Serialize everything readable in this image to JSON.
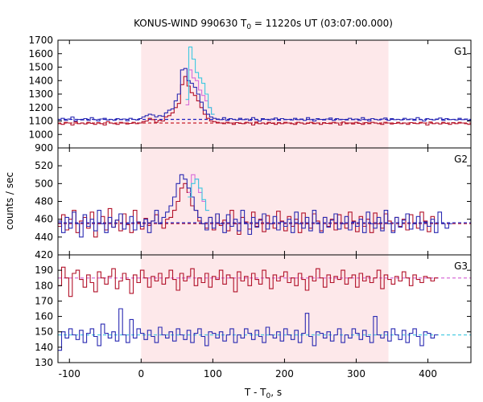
{
  "chart_data": {
    "type": "line",
    "title": "KONUS-WIND 990630 T",
    "title_sub": "0",
    "title_rest": " = 11220s UT (03:07:00.000)",
    "xlabel": "T - T",
    "xlabel_sub": "0",
    "xlabel_rest": ", s",
    "ylabel": "counts / sec",
    "xlim": [
      -116,
      460
    ],
    "x_ticks": [
      -100,
      0,
      100,
      200,
      300,
      400
    ],
    "x_tick_labels": [
      "-100",
      "0",
      "100",
      "200",
      "300",
      "400"
    ],
    "shaded_interval": [
      0,
      345
    ],
    "colors": {
      "red": "#b2122a",
      "blue": "#2a2ab2",
      "magenta": "#d86cd8",
      "cyan": "#3cc8e0",
      "shade": "#fde8ea",
      "red_bg": "#c8202c",
      "blue_bg": "#2020c0"
    },
    "panels": [
      {
        "label": "G1",
        "ylim": [
          900,
          1700
        ],
        "y_ticks": [
          900,
          1000,
          1100,
          1200,
          1300,
          1400,
          1500,
          1600,
          1700
        ],
        "y_tick_labels": [
          "900",
          "1000",
          "1100",
          "1200",
          "1300",
          "1400",
          "1500",
          "1600",
          "1700"
        ],
        "background_lines": [
          {
            "color": "red_bg",
            "value": 1085
          },
          {
            "color": "blue_bg",
            "value": 1112
          }
        ],
        "series": [
          {
            "color": "red",
            "x_start": -116,
            "bin": 4.5,
            "values": [
              1080,
              1075,
              1090,
              1085,
              1070,
              1095,
              1080,
              1085,
              1078,
              1090,
              1082,
              1075,
              1088,
              1080,
              1070,
              1095,
              1085,
              1080,
              1075,
              1090,
              1085,
              1078,
              1082,
              1090,
              1080,
              1085,
              1095,
              1100,
              1120,
              1110,
              1090,
              1105,
              1100,
              1130,
              1140,
              1160,
              1200,
              1230,
              1370,
              1430,
              1360,
              1310,
              1290,
              1250,
              1200,
              1150,
              1120,
              1100,
              1095,
              1090,
              1085,
              1080,
              1090,
              1085,
              1075,
              1088,
              1082,
              1080,
              1090,
              1085,
              1070,
              1092,
              1080,
              1085,
              1078,
              1090,
              1082,
              1075,
              1088,
              1080,
              1090,
              1085,
              1080,
              1075,
              1090,
              1085,
              1078,
              1082,
              1090,
              1080,
              1085,
              1075,
              1088,
              1082,
              1080,
              1090,
              1085,
              1070,
              1092,
              1080,
              1085,
              1078,
              1090,
              1082,
              1075,
              1088,
              1080,
              1090,
              1085,
              1080,
              1075,
              1090,
              1085,
              1078,
              1082,
              1090,
              1080,
              1085,
              1075,
              1088,
              1082,
              1080,
              1090,
              1085,
              1070,
              1092,
              1080,
              1085,
              1078,
              1090,
              1082,
              1075,
              1088,
              1080,
              1090,
              1085,
              1080,
              1075,
              1085
            ]
          },
          {
            "color": "blue",
            "x_start": -116,
            "bin": 4.5,
            "values": [
              1110,
              1120,
              1105,
              1115,
              1130,
              1100,
              1112,
              1108,
              1118,
              1105,
              1125,
              1110,
              1100,
              1115,
              1120,
              1108,
              1112,
              1105,
              1118,
              1110,
              1115,
              1102,
              1120,
              1112,
              1108,
              1118,
              1130,
              1140,
              1150,
              1145,
              1130,
              1140,
              1135,
              1160,
              1180,
              1190,
              1250,
              1300,
              1480,
              1490,
              1400,
              1380,
              1350,
              1300,
              1240,
              1180,
              1150,
              1130,
              1120,
              1115,
              1110,
              1125,
              1105,
              1118,
              1112,
              1108,
              1120,
              1110,
              1115,
              1105,
              1125,
              1110,
              1100,
              1118,
              1112,
              1108,
              1115,
              1122,
              1105,
              1118,
              1110,
              1112,
              1108,
              1120,
              1110,
              1115,
              1105,
              1125,
              1110,
              1100,
              1118,
              1112,
              1108,
              1115,
              1122,
              1105,
              1118,
              1110,
              1112,
              1108,
              1120,
              1110,
              1115,
              1105,
              1125,
              1110,
              1100,
              1118,
              1112,
              1108,
              1115,
              1122,
              1105,
              1118,
              1110,
              1112,
              1108,
              1120,
              1110,
              1115,
              1105,
              1125,
              1110,
              1100,
              1118,
              1112,
              1108,
              1115,
              1122,
              1105,
              1118,
              1110,
              1112,
              1108,
              1120,
              1110,
              1115,
              1105,
              1110
            ]
          },
          {
            "color": "magenta",
            "x_start": 62,
            "bin": 4.5,
            "values": [
              1220,
              1480,
              1420,
              1400,
              1330,
              1290,
              1250,
              1200,
              1150
            ]
          },
          {
            "color": "cyan",
            "x_start": 62,
            "bin": 4.5,
            "values": [
              1260,
              1650,
              1560,
              1460,
              1420,
              1380,
              1300,
              1200,
              1150
            ]
          }
        ]
      },
      {
        "label": "G2",
        "ylim": [
          420,
          540
        ],
        "y_ticks": [
          420,
          440,
          460,
          480,
          500,
          520
        ],
        "y_tick_labels": [
          "420",
          "440",
          "460",
          "480",
          "500",
          "520"
        ],
        "background_lines": [
          {
            "color": "red_bg",
            "value": 455
          },
          {
            "color": "blue_bg",
            "value": 456
          }
        ],
        "series": [
          {
            "color": "red",
            "x_start": -116,
            "bin": 5,
            "values": [
              452,
              465,
              448,
              460,
              470,
              445,
              458,
              462,
              450,
              468,
              440,
              455,
              463,
              448,
              472,
              451,
              459,
              447,
              466,
              454,
              445,
              470,
              456,
              449,
              461,
              453,
              458,
              465,
              455,
              450,
              460,
              462,
              470,
              480,
              495,
              500,
              490,
              475,
              470,
              458,
              455,
              450,
              462,
              448,
              466,
              453,
              459,
              447,
              470,
              455,
              443,
              462,
              457,
              449,
              468,
              452,
              460,
              446,
              464,
              455,
              450,
              469,
              458,
              447,
              463,
              452,
              460,
              445,
              467,
              455,
              450,
              466,
              458,
              447,
              462,
              452,
              460,
              448,
              465,
              455,
              450,
              468,
              458,
              446,
              463,
              452,
              460,
              445,
              467,
              455,
              450,
              466,
              458,
              447,
              462,
              452,
              460,
              448,
              465,
              455,
              450,
              468,
              458,
              446,
              463,
              455
            ]
          },
          {
            "color": "blue",
            "x_start": -116,
            "bin": 5,
            "values": [
              458,
              445,
              462,
              450,
              468,
              455,
              440,
              465,
              452,
              460,
              447,
              470,
              455,
              445,
              462,
              451,
              459,
              466,
              449,
              455,
              463,
              448,
              457,
              452,
              460,
              445,
              458,
              470,
              455,
              462,
              468,
              475,
              485,
              500,
              510,
              505,
              495,
              485,
              470,
              462,
              455,
              448,
              462,
              450,
              466,
              455,
              445,
              465,
              452,
              460,
              447,
              470,
              455,
              443,
              462,
              451,
              459,
              466,
              449,
              455,
              463,
              448,
              457,
              452,
              460,
              445,
              468,
              455,
              450,
              462,
              447,
              470,
              455,
              445,
              462,
              451,
              459,
              466,
              449,
              455,
              463,
              448,
              457,
              452,
              460,
              445,
              468,
              455,
              450,
              462,
              447,
              470,
              455,
              445,
              462,
              451,
              459,
              466,
              449,
              455,
              463,
              448,
              457,
              452,
              460,
              445,
              468,
              455,
              450,
              455
            ]
          },
          {
            "color": "magenta",
            "x_start": 65,
            "bin": 5,
            "values": [
              490,
              510,
              505,
              490,
              480,
              470
            ]
          },
          {
            "color": "cyan",
            "x_start": 65,
            "bin": 5,
            "values": [
              485,
              500,
              505,
              495,
              482,
              470
            ]
          }
        ]
      },
      {
        "label": "G3",
        "ylim": [
          130,
          200
        ],
        "y_ticks": [
          130,
          140,
          150,
          160,
          170,
          180,
          190
        ],
        "y_tick_labels": [
          "130",
          "140",
          "150",
          "160",
          "170",
          "180",
          "190"
        ],
        "background_lines": [
          {
            "color": "magenta",
            "value": 185
          },
          {
            "color": "cyan",
            "value": 148
          }
        ],
        "series": [
          {
            "color": "red",
            "x_start": -116,
            "bin": 5,
            "values": [
              180,
              192,
              185,
              173,
              188,
              190,
              184,
              179,
              187,
              182,
              176,
              189,
              185,
              181,
              186,
              191,
              178,
              183,
              188,
              184,
              175,
              187,
              182,
              190,
              185,
              179,
              186,
              183,
              188,
              181,
              185,
              190,
              184,
              177,
              188,
              183,
              186,
              191,
              180,
              185,
              182,
              188,
              179,
              186,
              184,
              190,
              181,
              187,
              185,
              176,
              189,
              183,
              186,
              180,
              188,
              184,
              181,
              190,
              185,
              178,
              187,
              183,
              186,
              189,
              182,
              185,
              180,
              188,
              184,
              177,
              186,
              183,
              191,
              185,
              179,
              187,
              182,
              186,
              184,
              190,
              181,
              185,
              187,
              179,
              188,
              183,
              186,
              182,
              185,
              190,
              178,
              187,
              184,
              181,
              186,
              183,
              189,
              185,
              180,
              187,
              184,
              182,
              186,
              185,
              183,
              185
            ]
          },
          {
            "color": "blue",
            "x_start": -116,
            "bin": 5,
            "values": [
              138,
              150,
              146,
              152,
              148,
              145,
              151,
              143,
              149,
              152,
              147,
              141,
              155,
              149,
              146,
              150,
              144,
              165,
              148,
              143,
              158,
              146,
              152,
              149,
              145,
              151,
              147,
              143,
              153,
              148,
              146,
              150,
              144,
              152,
              148,
              145,
              151,
              143,
              149,
              152,
              147,
              141,
              150,
              149,
              146,
              150,
              144,
              148,
              152,
              143,
              148,
              146,
              152,
              149,
              145,
              151,
              147,
              143,
              153,
              148,
              146,
              150,
              144,
              152,
              148,
              145,
              151,
              143,
              149,
              162,
              147,
              141,
              150,
              149,
              146,
              150,
              144,
              148,
              152,
              143,
              148,
              146,
              152,
              149,
              145,
              151,
              147,
              143,
              160,
              148,
              146,
              150,
              144,
              152,
              148,
              145,
              151,
              143,
              149,
              152,
              147,
              141,
              150,
              149,
              146,
              148
            ]
          }
        ]
      }
    ]
  }
}
